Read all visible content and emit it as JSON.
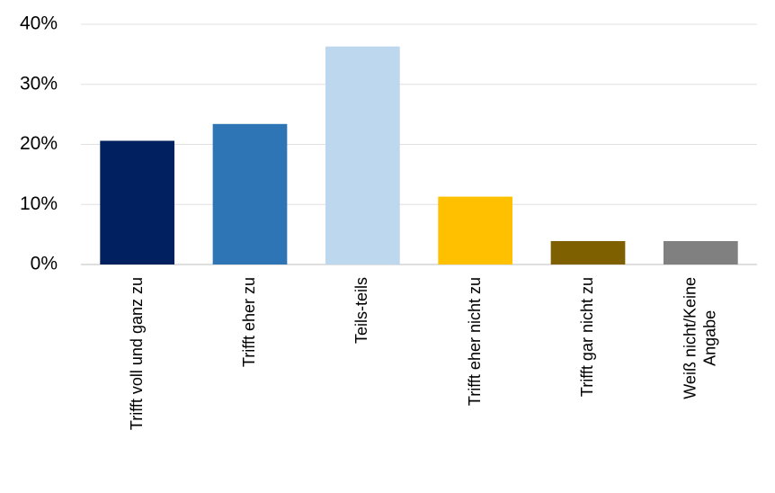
{
  "chart_data": {
    "type": "bar",
    "categories": [
      "Trifft voll und ganz zu",
      "Trifft eher zu",
      "Teils-teils",
      "Trifft eher nicht zu",
      "Trifft gar nicht zu",
      "Weiß nicht/Keine\nAngabe"
    ],
    "values": [
      20.6,
      23.4,
      36.3,
      11.3,
      3.9,
      3.9
    ],
    "colors": [
      "#002060",
      "#2e75b6",
      "#bdd7ee",
      "#ffc000",
      "#7f6000",
      "#808080"
    ],
    "ylim": [
      0,
      40
    ],
    "yticks": [
      {
        "value": 0,
        "label": "0%"
      },
      {
        "value": 10,
        "label": "10%"
      },
      {
        "value": 20,
        "label": "20%"
      },
      {
        "value": 30,
        "label": "30%"
      },
      {
        "value": 40,
        "label": "40%"
      }
    ],
    "grid": true
  }
}
